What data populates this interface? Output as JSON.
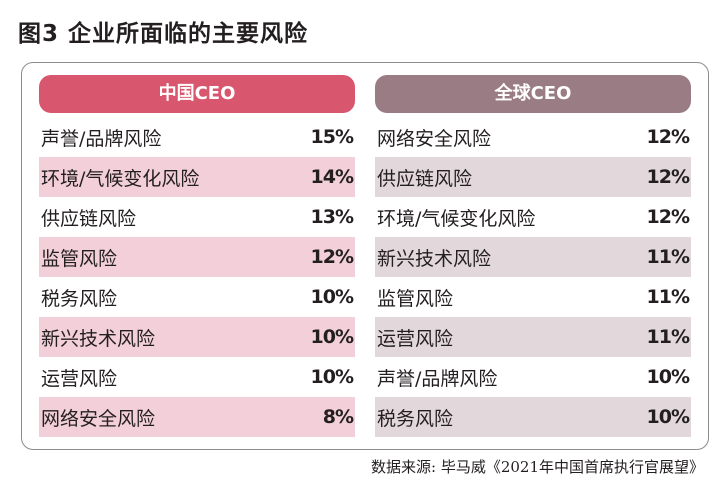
{
  "title": "图3  企业所面临的主要风险",
  "source": "数据来源: 毕马威《2021年中国首席执行官展望》",
  "colors": {
    "china_header": "#d8566e",
    "china_shade": "#f2cfd9",
    "global_header": "#9a7c84",
    "global_shade": "#e2d8db"
  },
  "chart_data": [
    {
      "type": "table",
      "header": "中国CEO",
      "rows": [
        {
          "label": "声誉/品牌风险",
          "value": 15,
          "display": "15%"
        },
        {
          "label": "环境/气候变化风险",
          "value": 14,
          "display": "14%"
        },
        {
          "label": "供应链风险",
          "value": 13,
          "display": "13%"
        },
        {
          "label": "监管风险",
          "value": 12,
          "display": "12%"
        },
        {
          "label": "税务风险",
          "value": 10,
          "display": "10%"
        },
        {
          "label": "新兴技术风险",
          "value": 10,
          "display": "10%"
        },
        {
          "label": "运营风险",
          "value": 10,
          "display": "10%"
        },
        {
          "label": "网络安全风险",
          "value": 8,
          "display": "8%"
        }
      ]
    },
    {
      "type": "table",
      "header": "全球CEO",
      "rows": [
        {
          "label": "网络安全风险",
          "value": 12,
          "display": "12%"
        },
        {
          "label": "供应链风险",
          "value": 12,
          "display": "12%"
        },
        {
          "label": "环境/气候变化风险",
          "value": 12,
          "display": "12%"
        },
        {
          "label": "新兴技术风险",
          "value": 11,
          "display": "11%"
        },
        {
          "label": "监管风险",
          "value": 11,
          "display": "11%"
        },
        {
          "label": "运营风险",
          "value": 11,
          "display": "11%"
        },
        {
          "label": "声誉/品牌风险",
          "value": 10,
          "display": "10%"
        },
        {
          "label": "税务风险",
          "value": 10,
          "display": "10%"
        }
      ]
    }
  ]
}
